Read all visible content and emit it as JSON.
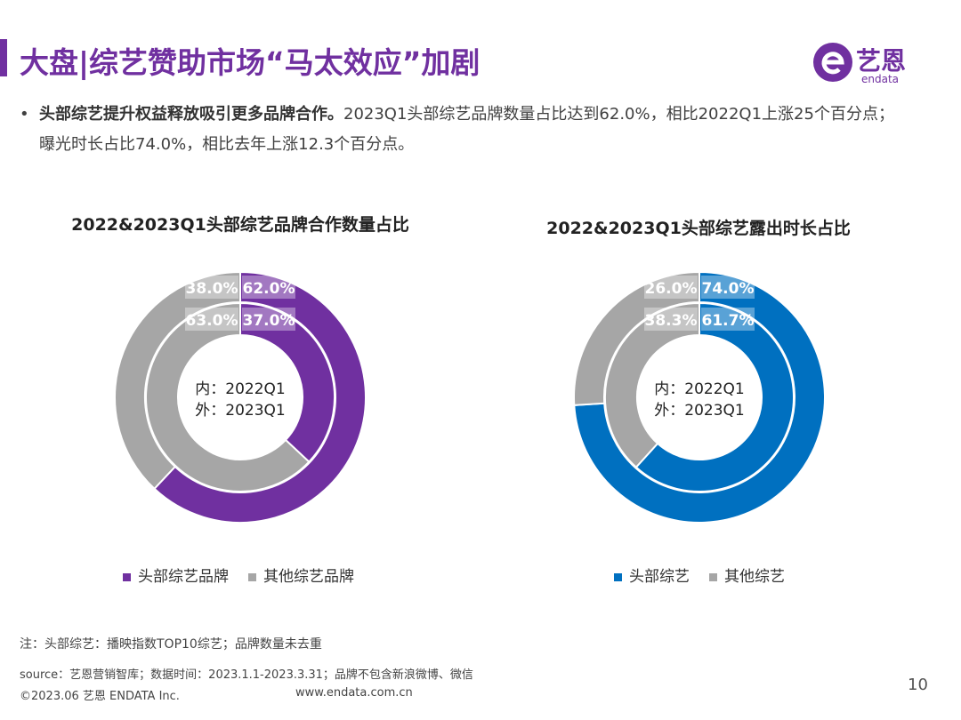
{
  "header": {
    "title": "大盘|综艺赞助市场“马太效应”加剧",
    "logo_text": "艺恩",
    "logo_sub": "endata"
  },
  "bullet": {
    "bold": "头部综艺提升权益释放吸引更多品牌合作。",
    "text": "2023Q1头部综艺品牌数量占比达到62.0%，相比2022Q1上涨25个百分点；曝光时长占比74.0%，相比去年上涨12.3个百分点。"
  },
  "colors": {
    "accent": "#7030a0",
    "gray": "#a6a6a6",
    "blue": "#0070c0"
  },
  "chart_data": [
    {
      "type": "pie",
      "variant": "nested-donut",
      "title": "2022&2023Q1头部综艺品牌合作数量占比",
      "center_label": [
        "内：2022Q1",
        "外：2023Q1"
      ],
      "series": [
        {
          "ring": "outer",
          "period": "2023Q1",
          "values": [
            62.0,
            38.0
          ],
          "labels": [
            "62.0%",
            "38.0%"
          ]
        },
        {
          "ring": "inner",
          "period": "2022Q1",
          "values": [
            37.0,
            63.0
          ],
          "labels": [
            "37.0%",
            "63.0%"
          ]
        }
      ],
      "categories": [
        "头部综艺品牌",
        "其他综艺品牌"
      ],
      "colors": [
        "#7030a0",
        "#a6a6a6"
      ],
      "legend": "bottom"
    },
    {
      "type": "pie",
      "variant": "nested-donut",
      "title": "2022&2023Q1头部综艺露出时长占比",
      "center_label": [
        "内：2022Q1",
        "外：2023Q1"
      ],
      "series": [
        {
          "ring": "outer",
          "period": "2023Q1",
          "values": [
            74.0,
            26.0
          ],
          "labels": [
            "74.0%",
            "26.0%"
          ]
        },
        {
          "ring": "inner",
          "period": "2022Q1",
          "values": [
            61.7,
            38.3
          ],
          "labels": [
            "61.7%",
            "38.3%"
          ]
        }
      ],
      "categories": [
        "头部综艺",
        "其他综艺"
      ],
      "colors": [
        "#0070c0",
        "#a6a6a6"
      ],
      "legend": "bottom"
    }
  ],
  "footer": {
    "note": "注：头部综艺：播映指数TOP10综艺；品牌数量未去重",
    "source": "source：艺恩营销智库；数据时间：2023.1.1-2023.3.31；品牌不包含新浪微博、微信",
    "copyright": "©2023.06 艺恩 ENDATA Inc.",
    "url": "www.endata.com.cn",
    "page": "10"
  }
}
